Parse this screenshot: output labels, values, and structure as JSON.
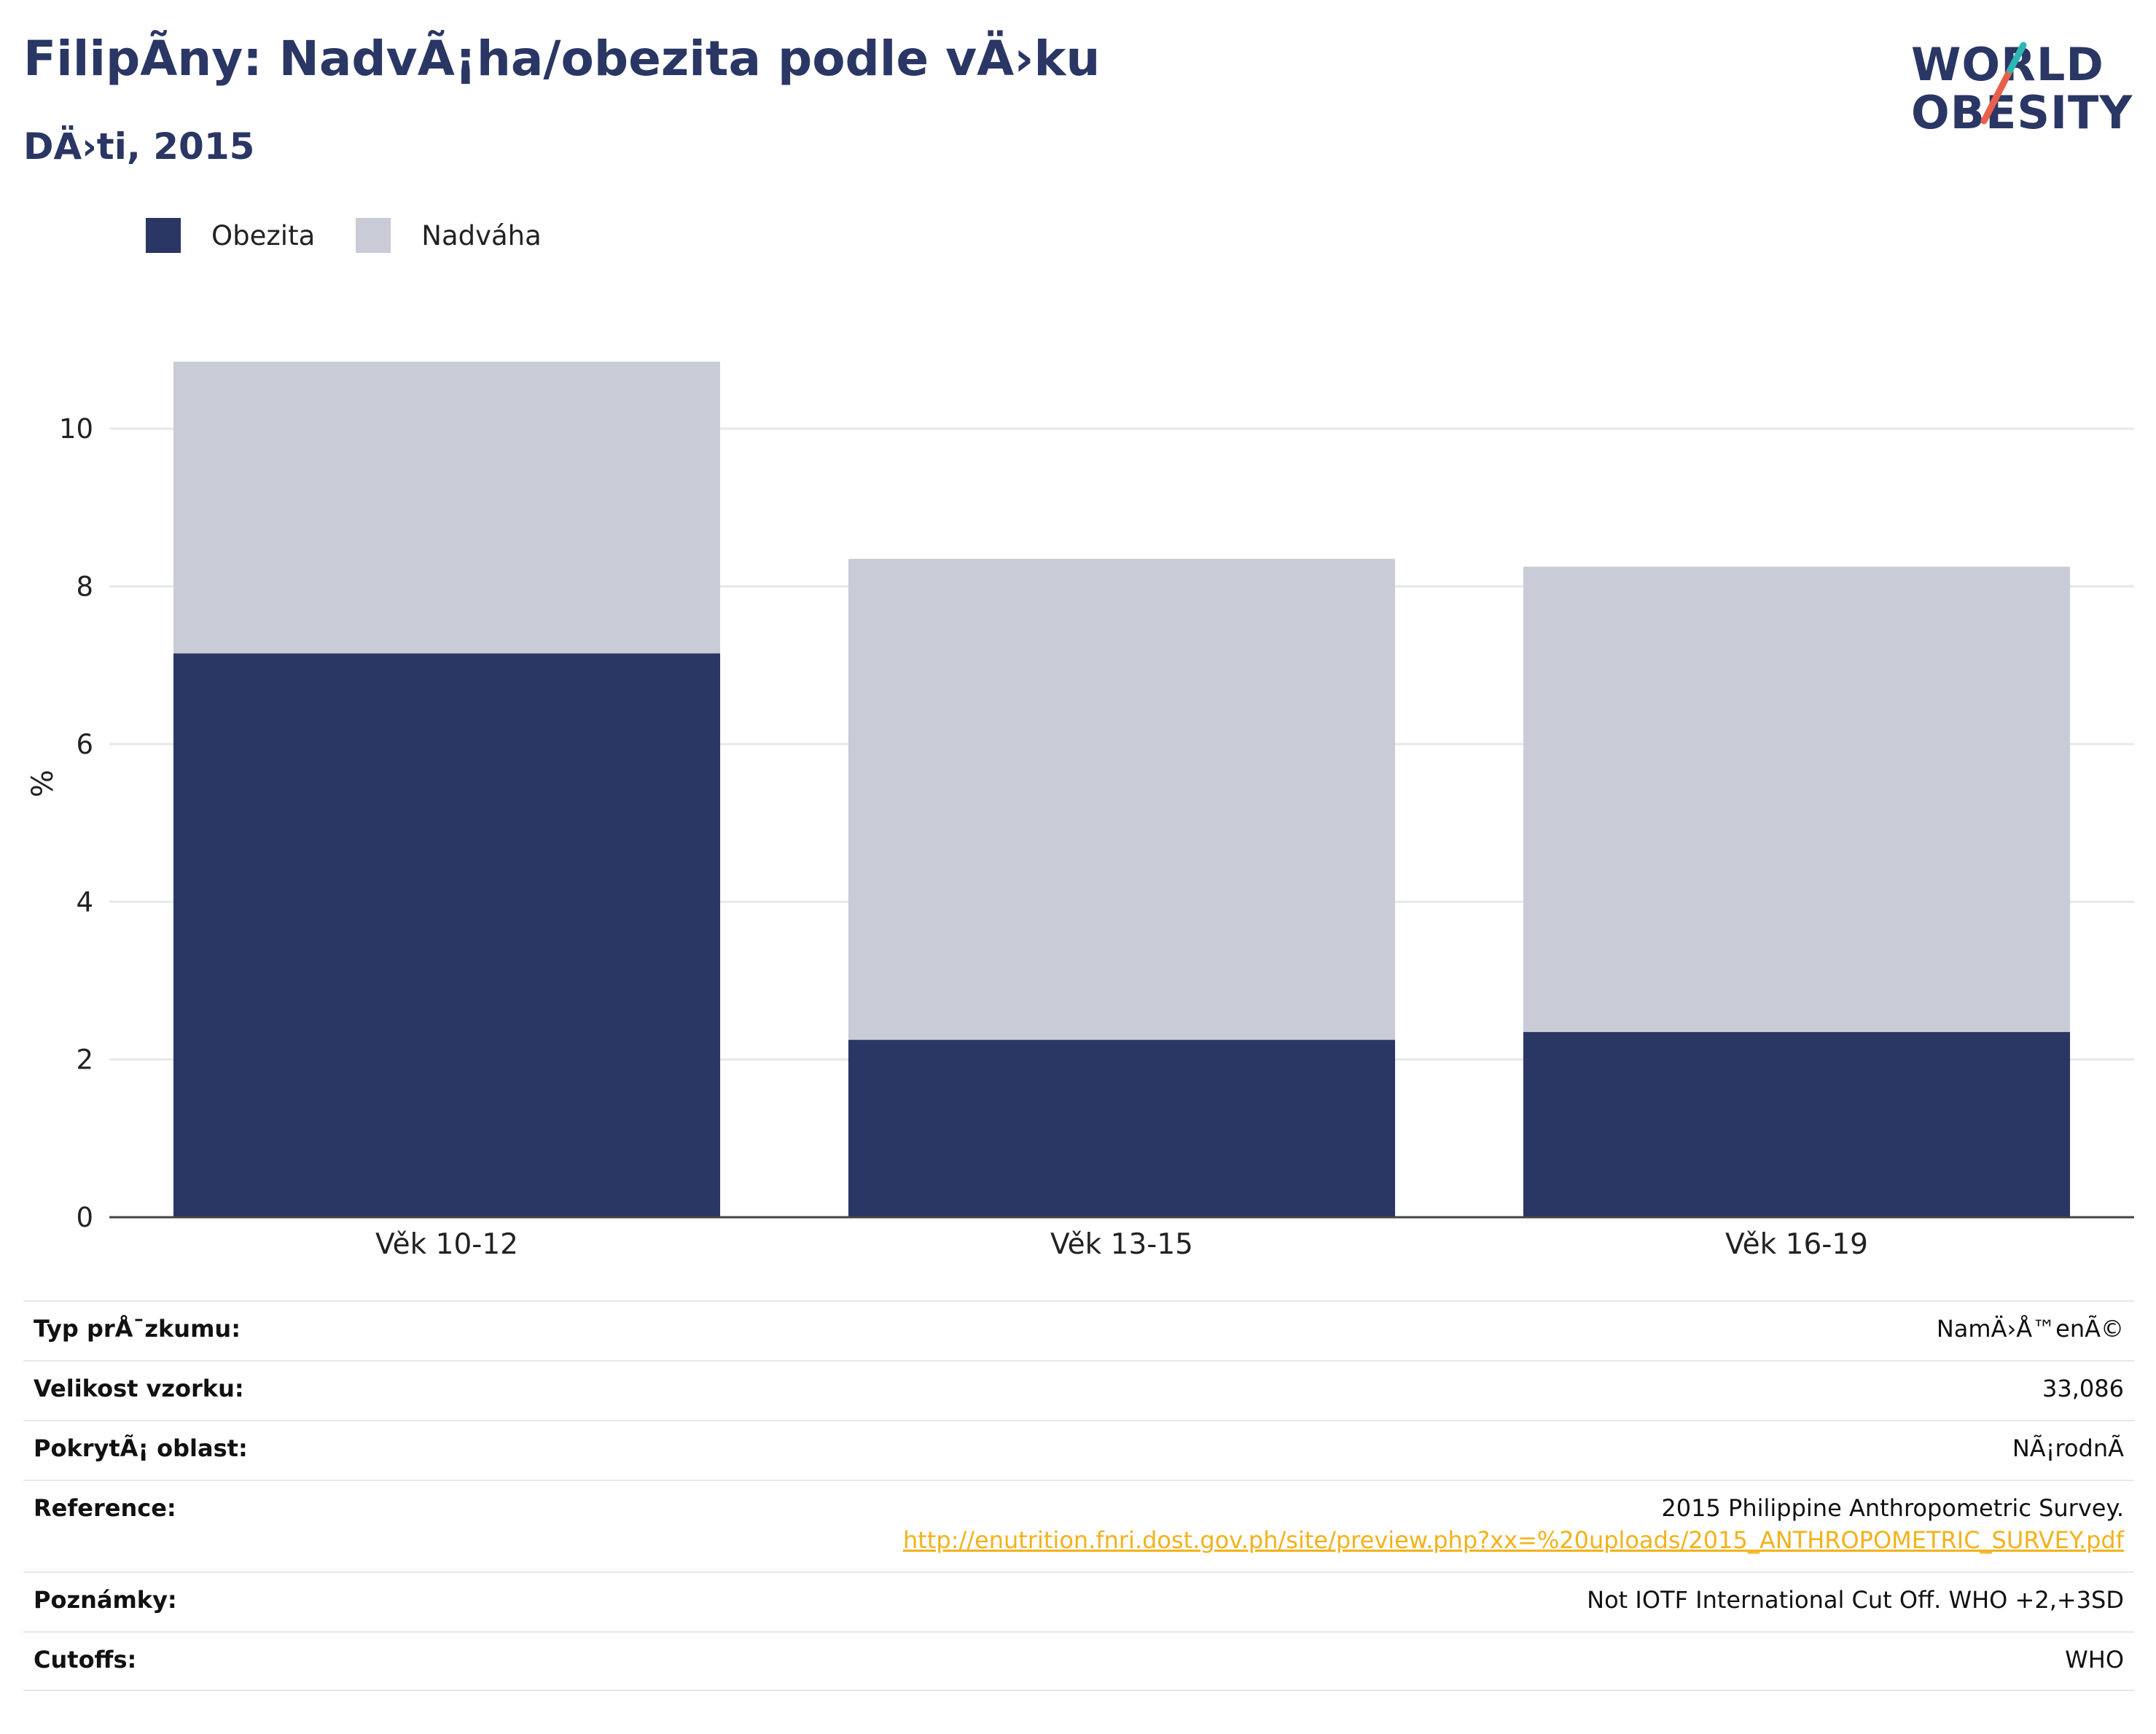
{
  "header": {
    "title": "FilipÃny: NadvÃ¡ha/obezita podle vÄ›ku",
    "subtitle": "DÄ›ti, 2015"
  },
  "logo": {
    "line1": "WORLD",
    "line2": "OBESITY",
    "accent_teal": "#2bb7b3",
    "accent_red": "#e8604c"
  },
  "legend": [
    {
      "label": "Obezita",
      "color": "#2a3664"
    },
    {
      "label": "Nadváha",
      "color": "#c9cbd6"
    }
  ],
  "chart_data": {
    "type": "bar",
    "stacked": true,
    "categories": [
      "Věk 10-12",
      "Věk 13-15",
      "Věk 16-19"
    ],
    "series": [
      {
        "name": "Obezita",
        "values": [
          7.15,
          2.25,
          2.35
        ],
        "color": "#2a3664"
      },
      {
        "name": "Nadváha",
        "values": [
          3.7,
          6.1,
          5.9
        ],
        "color": "#c9cbd6"
      }
    ],
    "ylabel": "%",
    "ylim": [
      0,
      11
    ],
    "yticks": [
      0,
      2,
      4,
      6,
      8,
      10
    ],
    "grid": true
  },
  "info": [
    {
      "key": "Typ prÅ¯zkumu:",
      "value": "NamÄ›Å™enÃ©"
    },
    {
      "key": "Velikost vzorku:",
      "value": "33,086"
    },
    {
      "key": "PokrytÃ¡ oblast:",
      "value": "NÃ¡rodnÃ"
    },
    {
      "key": "Reference:",
      "value": "2015 Philippine Anthropometric Survey.",
      "link": "http://enutrition.fnri.dost.gov.ph/site/preview.php?xx=%20uploads/2015_ANTHROPOMETRIC_SURVEY.pdf"
    },
    {
      "key": "Poznámky:",
      "value": "Not IOTF International Cut Off. WHO +2,+3SD"
    },
    {
      "key": "Cutoffs:",
      "value": "WHO"
    }
  ]
}
